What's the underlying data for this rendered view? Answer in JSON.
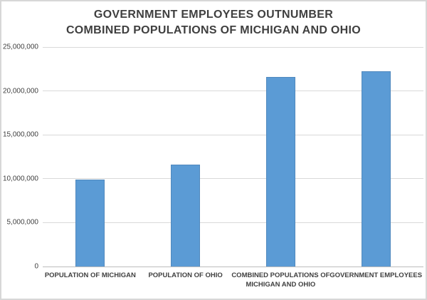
{
  "chart_data": {
    "type": "bar",
    "title": "GOVERNMENT EMPLOYEES OUTNUMBER COMBINED POPULATIONS OF MICHIGAN AND OHIO",
    "title_lines": [
      "GOVERNMENT EMPLOYEES OUTNUMBER",
      "COMBINED POPULATIONS OF MICHIGAN AND OHIO"
    ],
    "categories": [
      "POPULATION OF MICHIGAN",
      "POPULATION OF OHIO",
      "COMBINED POPULATIONS OF MICHIGAN AND OHIO",
      "GOVERNMENT EMPLOYEES"
    ],
    "values": [
      9900000,
      11600000,
      21600000,
      22250000
    ],
    "xlabel": "",
    "ylabel": "",
    "ylim": [
      0,
      25000000
    ],
    "ytick_interval": 5000000,
    "ytick_labels": [
      "0",
      "5,000,000",
      "10,000,000",
      "15,000,000",
      "20,000,000",
      "25,000,000"
    ],
    "grid": true,
    "legend": false,
    "colors": {
      "bar": "#5b9bd5",
      "gridline": "#d9d9d9",
      "baseline": "#bdbdbd",
      "text": "#404040",
      "title_text": "#3f3f3f",
      "frame_border": "#d7d7d7",
      "background": "#ffffff"
    }
  }
}
